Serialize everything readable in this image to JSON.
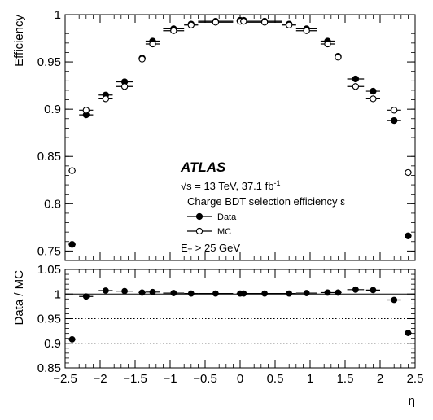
{
  "chart_data": [
    {
      "type": "scatter",
      "xlabel": "η",
      "ylabel": "Efficiency",
      "xlim": [
        -2.5,
        2.5
      ],
      "ylim": [
        0.74,
        1.0
      ],
      "yticks": [
        "0.75",
        "0.8",
        "0.85",
        "0.9",
        "0.95",
        "1"
      ],
      "experiment": "ATLAS",
      "energy_prefix": "√s = 13 TeV, 37.1 fb",
      "lumi_exp": "-1",
      "selection_label": "Charge BDT selection efficiency ε",
      "cut_label_main": "E",
      "cut_label_sub": "T",
      "cut_label_rest": " > 25 GeV",
      "legend": [
        "Data",
        "MC"
      ],
      "x_centers": [
        -2.4,
        -2.2,
        -1.92,
        -1.65,
        -1.4,
        -1.25,
        -0.95,
        -0.7,
        -0.35,
        0,
        0.05,
        0.35,
        0.7,
        0.95,
        1.25,
        1.4,
        1.65,
        1.9,
        2.2,
        2.4
      ],
      "x_halfwidths": [
        0.05,
        0.1,
        0.1,
        0.12,
        0.05,
        0.1,
        0.15,
        0.1,
        0.25,
        0.05,
        0.05,
        0.25,
        0.1,
        0.15,
        0.1,
        0.05,
        0.12,
        0.1,
        0.1,
        0.05
      ],
      "series": [
        {
          "name": "Data",
          "marker": "filled",
          "y": [
            0.757,
            0.894,
            0.915,
            0.929,
            0.954,
            0.972,
            0.985,
            0.99,
            0.993,
            0.994,
            0.994,
            0.993,
            0.99,
            0.985,
            0.972,
            0.956,
            0.932,
            0.919,
            0.888,
            0.766
          ]
        },
        {
          "name": "MC",
          "marker": "open",
          "y": [
            0.835,
            0.899,
            0.911,
            0.924,
            0.953,
            0.969,
            0.983,
            0.989,
            0.992,
            0.993,
            0.993,
            0.992,
            0.989,
            0.983,
            0.969,
            0.955,
            0.924,
            0.911,
            0.899,
            0.833
          ]
        }
      ]
    },
    {
      "type": "scatter",
      "xlabel": "η",
      "ylabel": "Data / MC",
      "xlim": [
        -2.5,
        2.5
      ],
      "ylim": [
        0.85,
        1.05
      ],
      "yticks": [
        "0.85",
        "0.9",
        "0.95",
        "1",
        "1.05"
      ],
      "xticks": [
        "−2.5",
        "−2",
        "−1.5",
        "−1",
        "−0.5",
        "0",
        "0.5",
        "1",
        "1.5",
        "2",
        "2.5"
      ],
      "reference_lines": [
        1.0,
        0.95,
        0.9
      ],
      "series": [
        {
          "name": "Data / MC",
          "x": [
            -2.4,
            -2.2,
            -1.92,
            -1.65,
            -1.4,
            -1.25,
            -0.95,
            -0.7,
            -0.35,
            0,
            0.05,
            0.35,
            0.7,
            0.95,
            1.25,
            1.4,
            1.65,
            1.9,
            2.2,
            2.4
          ],
          "y": [
            0.908,
            0.995,
            1.007,
            1.006,
            1.003,
            1.004,
            1.002,
            1.001,
            1.001,
            1.001,
            1.001,
            1.001,
            1.001,
            1.002,
            1.003,
            1.003,
            1.009,
            1.008,
            0.988,
            0.921
          ]
        }
      ]
    }
  ]
}
